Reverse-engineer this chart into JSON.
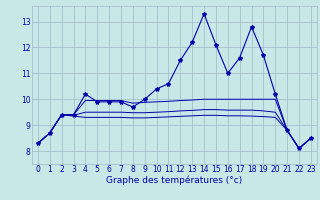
{
  "title": "Graphe des températures (°c)",
  "bg_color": "#c8e8e8",
  "plot_bg_color": "#c8e8e8",
  "grid_color": "#a0b8c8",
  "line_color": "#0000aa",
  "xlim": [
    -0.5,
    23.5
  ],
  "ylim": [
    7.5,
    13.6
  ],
  "xticks": [
    0,
    1,
    2,
    3,
    4,
    5,
    6,
    7,
    8,
    9,
    10,
    11,
    12,
    13,
    14,
    15,
    16,
    17,
    18,
    19,
    20,
    21,
    22,
    23
  ],
  "yticks": [
    8,
    9,
    10,
    11,
    12,
    13
  ],
  "main": [
    [
      0,
      8.3
    ],
    [
      1,
      8.7
    ],
    [
      2,
      9.4
    ],
    [
      3,
      9.4
    ],
    [
      4,
      10.2
    ],
    [
      5,
      9.9
    ],
    [
      6,
      9.9
    ],
    [
      7,
      9.9
    ],
    [
      8,
      9.7
    ],
    [
      9,
      10.0
    ],
    [
      10,
      10.4
    ],
    [
      11,
      10.6
    ],
    [
      12,
      11.5
    ],
    [
      13,
      12.2
    ],
    [
      14,
      13.3
    ],
    [
      15,
      12.1
    ],
    [
      16,
      11.0
    ],
    [
      17,
      11.6
    ],
    [
      18,
      12.8
    ],
    [
      19,
      11.7
    ],
    [
      20,
      10.2
    ],
    [
      21,
      8.8
    ],
    [
      22,
      8.1
    ],
    [
      23,
      8.5
    ]
  ],
  "line2": [
    [
      0,
      8.3
    ],
    [
      1,
      8.7
    ],
    [
      2,
      9.4
    ],
    [
      3,
      9.4
    ],
    [
      4,
      9.95
    ],
    [
      5,
      9.95
    ],
    [
      6,
      9.95
    ],
    [
      7,
      9.95
    ],
    [
      8,
      9.85
    ],
    [
      9,
      9.88
    ],
    [
      10,
      9.9
    ],
    [
      11,
      9.92
    ],
    [
      12,
      9.95
    ],
    [
      13,
      9.97
    ],
    [
      14,
      10.0
    ],
    [
      15,
      10.0
    ],
    [
      16,
      10.0
    ],
    [
      17,
      10.0
    ],
    [
      18,
      10.0
    ],
    [
      19,
      10.0
    ],
    [
      20,
      10.0
    ],
    [
      21,
      8.8
    ],
    [
      22,
      8.1
    ],
    [
      23,
      8.5
    ]
  ],
  "line3": [
    [
      0,
      8.3
    ],
    [
      1,
      8.7
    ],
    [
      2,
      9.4
    ],
    [
      3,
      9.38
    ],
    [
      4,
      9.5
    ],
    [
      5,
      9.5
    ],
    [
      6,
      9.5
    ],
    [
      7,
      9.5
    ],
    [
      8,
      9.48
    ],
    [
      9,
      9.48
    ],
    [
      10,
      9.5
    ],
    [
      11,
      9.52
    ],
    [
      12,
      9.55
    ],
    [
      13,
      9.57
    ],
    [
      14,
      9.6
    ],
    [
      15,
      9.6
    ],
    [
      16,
      9.58
    ],
    [
      17,
      9.58
    ],
    [
      18,
      9.58
    ],
    [
      19,
      9.55
    ],
    [
      20,
      9.5
    ],
    [
      21,
      8.8
    ],
    [
      22,
      8.1
    ],
    [
      23,
      8.5
    ]
  ],
  "line4": [
    [
      0,
      8.3
    ],
    [
      1,
      8.7
    ],
    [
      2,
      9.4
    ],
    [
      3,
      9.35
    ],
    [
      4,
      9.3
    ],
    [
      5,
      9.3
    ],
    [
      6,
      9.3
    ],
    [
      7,
      9.3
    ],
    [
      8,
      9.28
    ],
    [
      9,
      9.28
    ],
    [
      10,
      9.3
    ],
    [
      11,
      9.32
    ],
    [
      12,
      9.34
    ],
    [
      13,
      9.36
    ],
    [
      14,
      9.38
    ],
    [
      15,
      9.38
    ],
    [
      16,
      9.36
    ],
    [
      17,
      9.36
    ],
    [
      18,
      9.35
    ],
    [
      19,
      9.33
    ],
    [
      20,
      9.3
    ],
    [
      21,
      8.8
    ],
    [
      22,
      8.1
    ],
    [
      23,
      8.5
    ]
  ]
}
